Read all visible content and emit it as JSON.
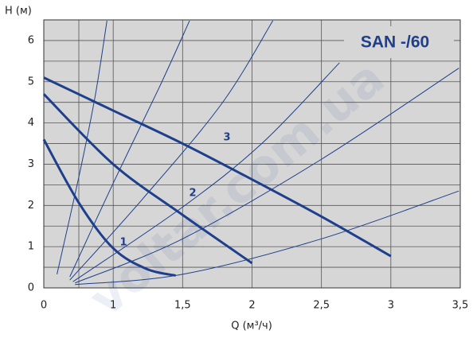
{
  "chart_data": {
    "type": "line",
    "title": "SAN -/60",
    "x_label": "Q (м³/ч)",
    "y_label": "H (м)",
    "watermark": "voltar.com.ua",
    "xlim": [
      0,
      3.5
    ],
    "xticks": [
      0,
      1,
      {
        "value": 1.5,
        "label": "1,5"
      },
      2,
      {
        "value": 2.5,
        "label": "2,5"
      },
      3,
      {
        "value": 3.5,
        "label": "3,5"
      }
    ],
    "ylim": [
      0,
      6.5
    ],
    "yticks": [
      0,
      1,
      2,
      3,
      4,
      5,
      6
    ],
    "grid": true,
    "series": [
      {
        "name": "1",
        "color": "#1e3f8c",
        "x": [
          0,
          0.51,
          1,
          1.24,
          1.45
        ],
        "y": [
          3.6,
          2.05,
          0.96,
          0.46,
          0.3
        ]
      },
      {
        "name": "2",
        "color": "#1e3f8c",
        "x": [
          0,
          1,
          1.5,
          2
        ],
        "y": [
          4.7,
          3.0,
          1.77,
          0.6
        ]
      },
      {
        "name": "3",
        "color": "#1e3f8c",
        "x": [
          0,
          1,
          1.5,
          2,
          2.5,
          3
        ],
        "y": [
          5.1,
          4.3,
          3.5,
          2.63,
          1.73,
          0.77
        ]
      }
    ],
    "system_curve_color": "#1e3f8c",
    "system_curves": [
      {
        "x": [
          0.19,
          0.51,
          0.74,
          0.91
        ],
        "y": [
          0.33,
          2.73,
          4.65,
          6.48
        ]
      },
      {
        "x": [
          0.375,
          1,
          1.33,
          1.55
        ],
        "y": [
          0.27,
          2.54,
          4.85,
          6.48
        ]
      },
      {
        "x": [
          0.375,
          1.21,
          1.78,
          2.15
        ],
        "y": [
          0.19,
          2.15,
          4.46,
          6.48
        ]
      },
      {
        "x": [
          0.42,
          1.5,
          2.07,
          2.63
        ],
        "y": [
          0.15,
          1.96,
          3.5,
          5.46
        ]
      },
      {
        "x": [
          0.45,
          1.5,
          2.5,
          3.49
        ],
        "y": [
          0.12,
          1.19,
          3.12,
          5.33
        ]
      },
      {
        "x": [
          0.45,
          1.5,
          2.5,
          3.49
        ],
        "y": [
          0.08,
          0.33,
          1.19,
          2.35
        ]
      }
    ]
  }
}
